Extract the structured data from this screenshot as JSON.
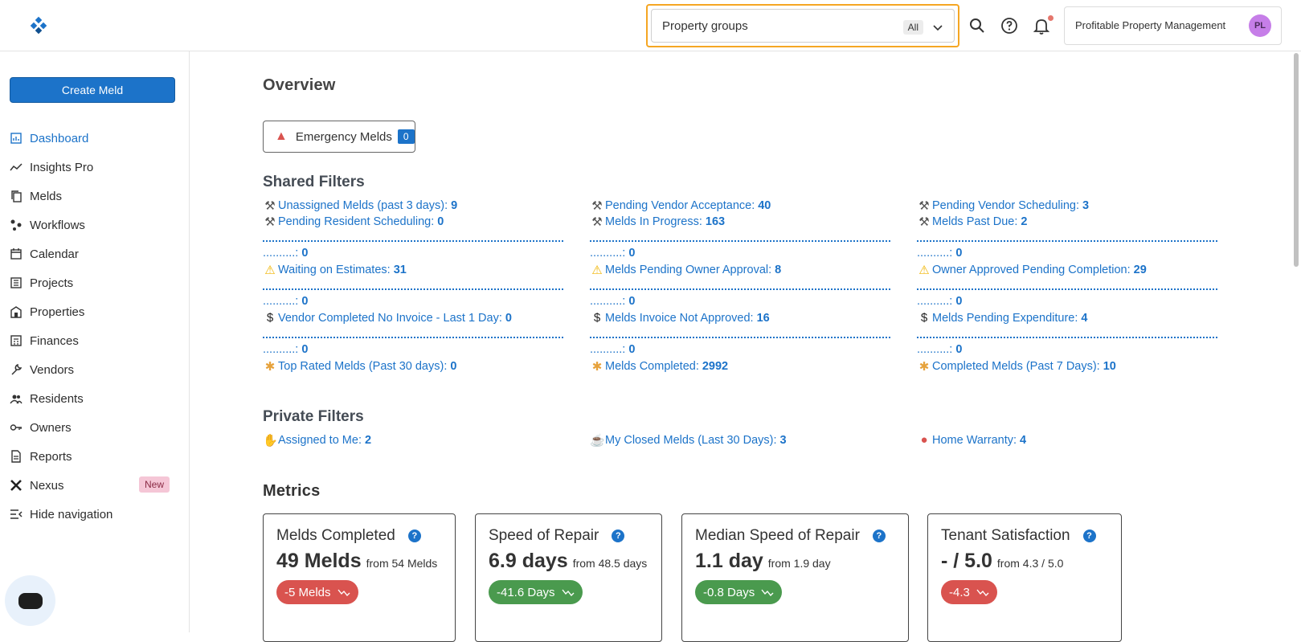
{
  "header": {
    "property_groups_label": "Property groups",
    "property_groups_value": "All",
    "org_name": "Profitable Property Management",
    "avatar_initials": "PL"
  },
  "sidebar": {
    "create_label": "Create Meld",
    "items": [
      {
        "label": "Dashboard",
        "icon": "dashboard-icon",
        "active": true
      },
      {
        "label": "Insights Pro",
        "icon": "chart-line-icon"
      },
      {
        "label": "Melds",
        "icon": "copy-icon"
      },
      {
        "label": "Workflows",
        "icon": "workflow-icon"
      },
      {
        "label": "Calendar",
        "icon": "calendar-icon"
      },
      {
        "label": "Projects",
        "icon": "list-icon"
      },
      {
        "label": "Properties",
        "icon": "building-icon"
      },
      {
        "label": "Finances",
        "icon": "calculator-icon"
      },
      {
        "label": "Vendors",
        "icon": "wrench-icon"
      },
      {
        "label": "Residents",
        "icon": "people-icon"
      },
      {
        "label": "Owners",
        "icon": "key-icon"
      },
      {
        "label": "Reports",
        "icon": "report-icon"
      },
      {
        "label": "Nexus",
        "icon": "nexus-icon"
      },
      {
        "label": "Hide navigation",
        "icon": "collapse-icon"
      }
    ],
    "new_badge": "New"
  },
  "overview": {
    "title": "Overview",
    "emergency_label": "Emergency Melds",
    "emergency_count": "0"
  },
  "shared": {
    "title": "Shared Filters",
    "dots_label": "..........:",
    "columns": [
      {
        "rows": [
          {
            "label": "Unassigned Melds (past 3 days):",
            "count": "9",
            "icon": "tools-icon"
          },
          {
            "label": "Pending Resident Scheduling:",
            "count": "0",
            "icon": "tools-icon"
          },
          {
            "label": "..........:",
            "count": "0",
            "icon": ""
          },
          {
            "label": "Waiting on Estimates:",
            "count": "31",
            "icon": "warning-icon"
          },
          {
            "label": "..........:",
            "count": "0",
            "icon": ""
          },
          {
            "label": "Vendor Completed No Invoice - Last 1 Day:",
            "count": "0",
            "icon": "dollar-icon"
          },
          {
            "label": "..........:",
            "count": "0",
            "icon": ""
          },
          {
            "label": "Top Rated Melds (Past 30 days):",
            "count": "0",
            "icon": "party-icon"
          }
        ]
      },
      {
        "rows": [
          {
            "label": "Pending Vendor Acceptance:",
            "count": "40",
            "icon": "tools-icon"
          },
          {
            "label": "Melds In Progress:",
            "count": "163",
            "icon": "tools-icon"
          },
          {
            "label": "..........:",
            "count": "0",
            "icon": ""
          },
          {
            "label": "Melds Pending Owner Approval:",
            "count": "8",
            "icon": "warning-icon"
          },
          {
            "label": "..........:",
            "count": "0",
            "icon": ""
          },
          {
            "label": "Melds Invoice Not Approved:",
            "count": "16",
            "icon": "dollar-icon"
          },
          {
            "label": "..........:",
            "count": "0",
            "icon": ""
          },
          {
            "label": "Melds Completed:",
            "count": "2992",
            "icon": "party-icon"
          }
        ]
      },
      {
        "rows": [
          {
            "label": "Pending Vendor Scheduling:",
            "count": "3",
            "icon": "tools-icon"
          },
          {
            "label": "Melds Past Due:",
            "count": "2",
            "icon": "tools-icon"
          },
          {
            "label": "..........:",
            "count": "0",
            "icon": ""
          },
          {
            "label": "Owner Approved Pending Completion:",
            "count": "29",
            "icon": "warning-icon"
          },
          {
            "label": "..........:",
            "count": "0",
            "icon": ""
          },
          {
            "label": "Melds Pending Expenditure:",
            "count": "4",
            "icon": "dollar-icon"
          },
          {
            "label": "..........:",
            "count": "0",
            "icon": ""
          },
          {
            "label": "Completed Melds (Past 7 Days):",
            "count": "10",
            "icon": "party-icon"
          }
        ]
      }
    ]
  },
  "private": {
    "title": "Private Filters",
    "items": [
      {
        "label": "Assigned to Me:",
        "count": "2",
        "icon": "hand-icon"
      },
      {
        "label": "My Closed Melds (Last 30 Days):",
        "count": "3",
        "icon": "beer-icon"
      },
      {
        "label": "Home Warranty:",
        "count": "4",
        "icon": "pin-icon"
      }
    ]
  },
  "metrics": {
    "title": "Metrics",
    "cards": [
      {
        "title": "Melds Completed",
        "value": "49 Melds",
        "from": "from 54 Melds",
        "delta": "-5 Melds",
        "status": "red",
        "status_color": "#d9534f"
      },
      {
        "title": "Speed of Repair",
        "value": "6.9 days",
        "from": "from 48.5 days",
        "delta": "-41.6 Days",
        "status": "green",
        "status_color": "#4a9a4e"
      },
      {
        "title": "Median Speed of Repair",
        "value": "1.1 day",
        "from": "from 1.9 day",
        "delta": "-0.8 Days",
        "status": "green",
        "status_color": "#4a9a4e"
      },
      {
        "title": "Tenant Satisfaction",
        "value": "- / 5.0",
        "from": "from 4.3 / 5.0",
        "delta": "-4.3",
        "status": "red",
        "status_color": "#d9534f"
      }
    ]
  },
  "colors": {
    "accent": "#1c73c9",
    "highlight_border": "#f5a623"
  }
}
